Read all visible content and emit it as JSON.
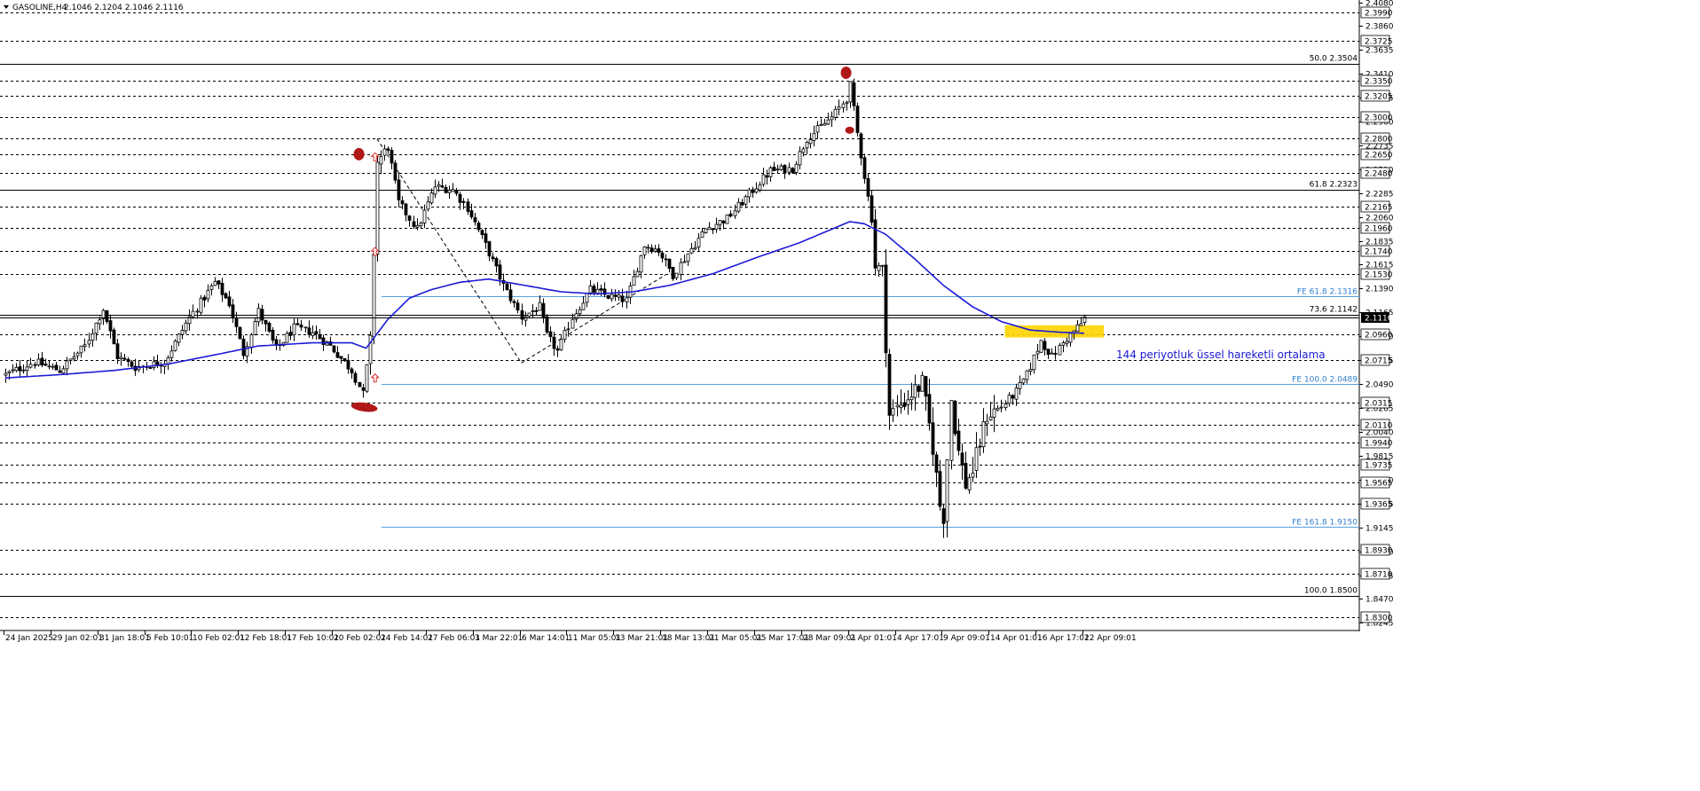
{
  "header": {
    "symbol_label": "GASOLINE,H4",
    "ohlc_label": "2.1046 2.1204 2.1046 2.1116"
  },
  "colors": {
    "background": "#ffffff",
    "candle": "#000000",
    "ema": "#1a1ad6",
    "fib_line": "#000000",
    "fe_line": "#5aa0e0",
    "fe_text": "#2f7fd0",
    "marker": "#b01818",
    "arrow": "#e03030",
    "highlight": "#ffd500",
    "annotation_text": "#1a1ad6",
    "current_price_bg": "#000000",
    "current_price_text": "#ffffff"
  },
  "chart_data": {
    "type": "candlestick",
    "timeframe": "H4",
    "ylim": [
      1.8182,
      2.4105
    ],
    "y_ticks": [
      "2.4080",
      "2.3860",
      "2.3635",
      "2.3410",
      "2.3185",
      "2.2960",
      "2.2735",
      "2.2510",
      "2.2285",
      "2.2060",
      "2.1835",
      "2.1615",
      "2.1390",
      "2.1165",
      "2.0940",
      "2.0715",
      "2.0490",
      "2.0265",
      "2.0040",
      "1.9815",
      "1.9590",
      "1.9365",
      "1.9145",
      "1.8920",
      "1.8695",
      "1.8470",
      "1.8245"
    ],
    "horizontal_levels": [
      {
        "label": "2.3990",
        "value": 2.399
      },
      {
        "label": "2.3725",
        "value": 2.3725
      },
      {
        "label": "2.3350",
        "value": 2.335
      },
      {
        "label": "2.3205",
        "value": 2.3205
      },
      {
        "label": "2.3000",
        "value": 2.3
      },
      {
        "label": "2.2800",
        "value": 2.28
      },
      {
        "label": "2.2650",
        "value": 2.265
      },
      {
        "label": "2.2480",
        "value": 2.248
      },
      {
        "label": "2.2165",
        "value": 2.2165
      },
      {
        "label": "2.1960",
        "value": 2.196
      },
      {
        "label": "2.1740",
        "value": 2.174
      },
      {
        "label": "2.1530",
        "value": 2.153
      },
      {
        "label": "2.0960",
        "value": 2.096
      },
      {
        "label": "2.0715",
        "value": 2.0715
      },
      {
        "label": "2.0315",
        "value": 2.0315
      },
      {
        "label": "2.0110",
        "value": 2.011
      },
      {
        "label": "1.9940",
        "value": 1.994
      },
      {
        "label": "1.9735",
        "value": 1.9735
      },
      {
        "label": "1.9565",
        "value": 1.9565
      },
      {
        "label": "1.9365",
        "value": 1.9365
      },
      {
        "label": "1.8930",
        "value": 1.893
      },
      {
        "label": "1.8710",
        "value": 1.871
      },
      {
        "label": "1.8300",
        "value": 1.83
      }
    ],
    "fib_levels": [
      {
        "label": "50.0 2.3504",
        "value": 2.3504
      },
      {
        "label": "61.8 2.2323",
        "value": 2.2323
      },
      {
        "label": "73.6 2.1142",
        "value": 2.1142
      },
      {
        "label": "100.0 1.8500",
        "value": 1.85
      }
    ],
    "fe_levels": [
      {
        "label": "FE 61.8 2.1316",
        "value": 2.1316
      },
      {
        "label": "FE 100.0 2.0489",
        "value": 2.0489
      },
      {
        "label": "FE 161.8 1.9150",
        "value": 1.915
      }
    ],
    "current_price": {
      "label": "2.1116",
      "value": 2.1116
    },
    "x_labels": [
      "24 Jan 2025",
      "29 Jan 02:01",
      "31 Jan 18:01",
      "5 Feb 10:01",
      "10 Feb 02:01",
      "12 Feb 18:01",
      "17 Feb 10:01",
      "20 Feb 02:01",
      "24 Feb 14:01",
      "27 Feb 06:01",
      "3 Mar 22:01",
      "6 Mar 14:01",
      "11 Mar 05:01",
      "13 Mar 21:01",
      "18 Mar 13:01",
      "21 Mar 05:01",
      "25 Mar 17:01",
      "28 Mar 09:01",
      "2 Apr 01:01",
      "4 Apr 17:01",
      "9 Apr 09:01",
      "14 Apr 01:01",
      "16 Apr 17:01",
      "22 Apr 09:01"
    ],
    "x_label_bars": [
      0,
      13,
      26,
      39,
      52,
      65,
      78,
      91,
      104,
      117,
      130,
      143,
      156,
      169,
      182,
      195,
      208,
      221,
      234,
      247,
      260,
      273,
      286,
      299
    ],
    "price_anchors": [
      [
        0,
        2.058
      ],
      [
        8,
        2.07
      ],
      [
        15,
        2.062
      ],
      [
        22,
        2.085
      ],
      [
        27,
        2.12
      ],
      [
        31,
        2.075
      ],
      [
        36,
        2.065
      ],
      [
        44,
        2.07
      ],
      [
        51,
        2.112
      ],
      [
        58,
        2.145
      ],
      [
        62,
        2.125
      ],
      [
        66,
        2.078
      ],
      [
        70,
        2.118
      ],
      [
        75,
        2.082
      ],
      [
        80,
        2.102
      ],
      [
        85,
        2.098
      ],
      [
        90,
        2.085
      ],
      [
        96,
        2.062
      ],
      [
        99,
        2.04
      ],
      [
        101,
        2.09
      ],
      [
        103,
        2.258
      ],
      [
        106,
        2.272
      ],
      [
        109,
        2.22
      ],
      [
        114,
        2.195
      ],
      [
        119,
        2.235
      ],
      [
        124,
        2.232
      ],
      [
        128,
        2.215
      ],
      [
        133,
        2.18
      ],
      [
        138,
        2.142
      ],
      [
        143,
        2.112
      ],
      [
        148,
        2.122
      ],
      [
        150,
        2.095
      ],
      [
        153,
        2.08
      ],
      [
        157,
        2.112
      ],
      [
        162,
        2.138
      ],
      [
        167,
        2.132
      ],
      [
        172,
        2.128
      ],
      [
        177,
        2.18
      ],
      [
        181,
        2.175
      ],
      [
        185,
        2.152
      ],
      [
        189,
        2.172
      ],
      [
        194,
        2.195
      ],
      [
        200,
        2.205
      ],
      [
        206,
        2.228
      ],
      [
        212,
        2.25
      ],
      [
        218,
        2.252
      ],
      [
        222,
        2.28
      ],
      [
        229,
        2.3
      ],
      [
        233,
        2.318
      ],
      [
        234,
        2.33
      ],
      [
        236,
        2.285
      ],
      [
        238,
        2.245
      ],
      [
        240,
        2.205
      ],
      [
        241,
        2.16
      ],
      [
        243,
        2.155
      ],
      [
        245,
        2.02
      ],
      [
        248,
        2.03
      ],
      [
        251,
        2.04
      ],
      [
        254,
        2.05
      ],
      [
        257,
        1.99
      ],
      [
        259,
        1.935
      ],
      [
        260,
        1.925
      ],
      [
        262,
        2.035
      ],
      [
        264,
        1.985
      ],
      [
        266,
        1.955
      ],
      [
        268,
        1.968
      ],
      [
        272,
        2.02
      ],
      [
        276,
        2.028
      ],
      [
        280,
        2.042
      ],
      [
        283,
        2.058
      ],
      [
        287,
        2.09
      ],
      [
        290,
        2.075
      ],
      [
        294,
        2.092
      ],
      [
        298,
        2.106
      ],
      [
        299,
        2.1116
      ]
    ],
    "candle_count": 300,
    "ema_anchors": [
      [
        0,
        2.055
      ],
      [
        15,
        2.058
      ],
      [
        30,
        2.062
      ],
      [
        45,
        2.068
      ],
      [
        60,
        2.078
      ],
      [
        70,
        2.085
      ],
      [
        85,
        2.088
      ],
      [
        96,
        2.088
      ],
      [
        100,
        2.083
      ],
      [
        106,
        2.11
      ],
      [
        112,
        2.13
      ],
      [
        118,
        2.138
      ],
      [
        126,
        2.145
      ],
      [
        134,
        2.148
      ],
      [
        144,
        2.142
      ],
      [
        154,
        2.136
      ],
      [
        164,
        2.134
      ],
      [
        174,
        2.136
      ],
      [
        184,
        2.142
      ],
      [
        196,
        2.153
      ],
      [
        208,
        2.168
      ],
      [
        220,
        2.182
      ],
      [
        234,
        2.202
      ],
      [
        238,
        2.2
      ],
      [
        244,
        2.19
      ],
      [
        252,
        2.167
      ],
      [
        260,
        2.142
      ],
      [
        268,
        2.122
      ],
      [
        276,
        2.108
      ],
      [
        284,
        2.1
      ],
      [
        292,
        2.098
      ],
      [
        299,
        2.097
      ]
    ],
    "ema_label": "144 periyotluk üssel hareketli ortalama",
    "pattern_lines": [
      {
        "from": [
          103,
          2.28
        ],
        "to": [
          143,
          2.069
        ]
      },
      {
        "from": [
          143,
          2.069
        ],
        "to": [
          183,
          2.152
        ]
      }
    ],
    "highlight_box": {
      "x_bars": [
        277,
        301
      ],
      "y": [
        2.093,
        2.1045
      ]
    },
    "arrow_markers": [
      [
        100,
        2.2625
      ],
      [
        100,
        2.1735
      ],
      [
        100,
        2.0545
      ]
    ],
    "circle_markers": [
      [
        98,
        2.2655
      ],
      [
        233,
        2.342
      ]
    ],
    "oval_markers": [
      [
        98,
        2.0275
      ],
      [
        234,
        2.288
      ]
    ]
  }
}
